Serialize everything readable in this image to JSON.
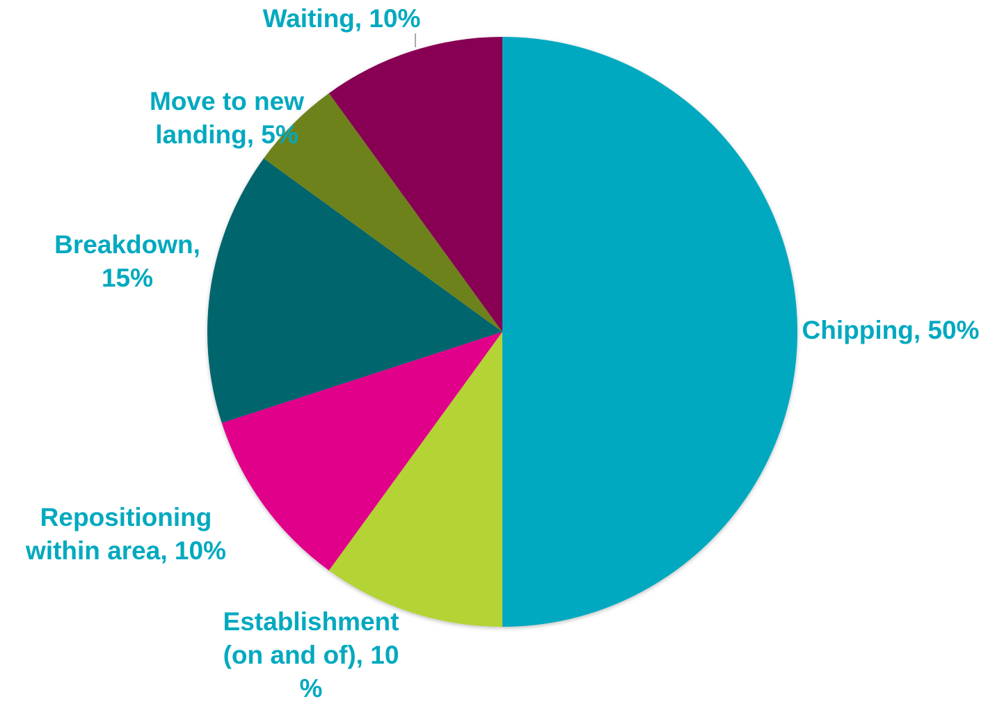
{
  "chart_data": {
    "type": "pie",
    "title": "",
    "start_angle_deg": 0,
    "direction": "clockwise",
    "label_color": "#00A9BF",
    "slices": [
      {
        "label": "Chipping",
        "value": 50,
        "label_lines": [
          "Chipping, 50%"
        ],
        "color": "#00A9BF"
      },
      {
        "label": "Establishment (on and of)",
        "value": 10,
        "label_lines": [
          "Establishment",
          "(on and of), 10",
          "%"
        ],
        "color": "#B4D334"
      },
      {
        "label": "Repositioning within area",
        "value": 10,
        "label_lines": [
          "Repositioning",
          "within area, 10%"
        ],
        "color": "#E0068A"
      },
      {
        "label": "Breakdown",
        "value": 15,
        "label_lines": [
          "Breakdown,",
          "15%"
        ],
        "color": "#00656D"
      },
      {
        "label": "Move to new landing",
        "value": 5,
        "label_lines": [
          "Move to new",
          "landing, 5%"
        ],
        "color": "#6E821F"
      },
      {
        "label": "Waiting",
        "value": 10,
        "label_lines": [
          "Waiting, 10%"
        ],
        "color": "#870052"
      }
    ]
  }
}
